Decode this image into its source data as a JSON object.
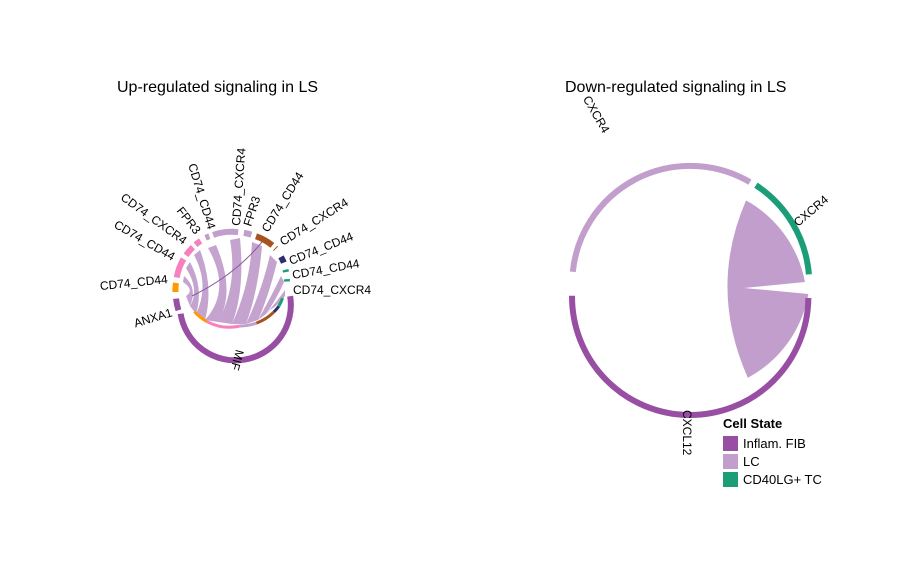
{
  "chart_data": [
    {
      "type": "chord",
      "title": "Up-regulated signaling in LS",
      "sectors": [
        {
          "label": "MIF",
          "group": "Inflam. FIB",
          "color": "#984ea3"
        },
        {
          "label": "ANXA1",
          "group": "Inflam. FIB",
          "color": "#984ea3"
        },
        {
          "label": "CD74_CD44",
          "group": "",
          "color": "#ff9900"
        },
        {
          "label": "CD74_CD44",
          "group": "",
          "color": "#f781bf"
        },
        {
          "label": "CD74_CXCR4",
          "group": "",
          "color": "#f781bf"
        },
        {
          "label": "FPR3",
          "group": "",
          "color": "#f781bf"
        },
        {
          "label": "CD74_CD44",
          "group": "LC",
          "color": "#c29ecc"
        },
        {
          "label": "CD74_CXCR4",
          "group": "LC",
          "color": "#c29ecc"
        },
        {
          "label": "FPR3",
          "group": "LC",
          "color": "#c29ecc"
        },
        {
          "label": "CD74_CD44",
          "group": "",
          "color": "#a6541f"
        },
        {
          "label": "CD74_CXCR4",
          "group": "",
          "color": "#a6541f"
        },
        {
          "label": "CD74_CD44",
          "group": "",
          "color": "#2c2e6e"
        },
        {
          "label": "CD74_CD44",
          "group": "CD40LG+ TC",
          "color": "#1b9e77"
        },
        {
          "label": "CD74_CXCR4",
          "group": "CD40LG+ TC",
          "color": "#1b9e77"
        }
      ]
    },
    {
      "type": "chord",
      "title": "Down-regulated signaling in LS",
      "sectors": [
        {
          "label": "CXCL12",
          "group": "Inflam. FIB",
          "color": "#984ea3"
        },
        {
          "label": "CXCR4",
          "group": "LC",
          "color": "#c29ecc"
        },
        {
          "label": "CXCR4",
          "group": "CD40LG+ TC",
          "color": "#1b9e77"
        }
      ],
      "links": [
        {
          "from": "CXCL12",
          "to": "CXCR4 (CD40LG+ TC)",
          "color": "#c29ecc"
        }
      ]
    }
  ],
  "legend": {
    "title": "Cell State",
    "items": [
      {
        "label": "Inflam. FIB",
        "color": "#984ea3"
      },
      {
        "label": "LC",
        "color": "#c29ecc"
      },
      {
        "label": "CD40LG+ TC",
        "color": "#1b9e77"
      }
    ]
  }
}
